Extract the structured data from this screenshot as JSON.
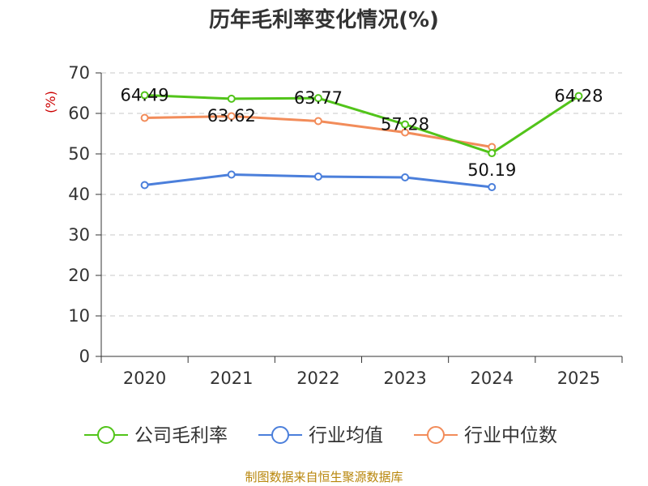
{
  "chart_data": {
    "type": "line",
    "title": "历年毛利率变化情况(%)",
    "ylabel": "(%)",
    "xlabel": "",
    "categories": [
      "2020",
      "2021",
      "2022",
      "2023",
      "2024",
      "2025"
    ],
    "ylim": [
      0,
      70
    ],
    "yticks": [
      0,
      10,
      20,
      30,
      40,
      50,
      60,
      70
    ],
    "grid": true,
    "legend_position": "bottom",
    "series": [
      {
        "name": "公司毛利率",
        "color": "#52c41a",
        "labeled": true,
        "values": [
          64.49,
          63.62,
          63.77,
          57.28,
          50.19,
          64.28
        ]
      },
      {
        "name": "行业均值",
        "color": "#4b7fdb",
        "labeled": false,
        "values": [
          42.3,
          44.9,
          44.4,
          44.2,
          41.8,
          null
        ]
      },
      {
        "name": "行业中位数",
        "color": "#f28c5a",
        "labeled": false,
        "values": [
          58.9,
          59.3,
          58.1,
          55.3,
          51.7,
          null
        ]
      }
    ]
  },
  "source": "制图数据来自恒生聚源数据库"
}
